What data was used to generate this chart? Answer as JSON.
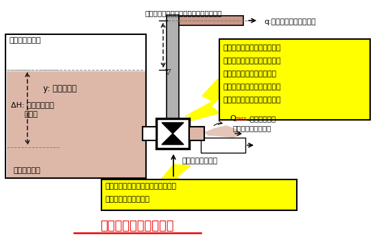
{
  "title": "同軸メカニカルポンプ",
  "canal_label": "用水路通水断面",
  "y_label": "y: ポンプ揚程",
  "dH_label1": "ΔH: ポンプ上下流",
  "dH_label2": "水位差",
  "pump_label": "樋管式分水工",
  "top_label": "高位農地への灌漑や他目的用水の給水所",
  "q_label": "q:ポンプ分水（揚水）量",
  "Qpass1": "Q",
  "Qpass2": "pass",
  "Qpass3": ":ポンプ通過量",
  "Qpass4": "（支線への分水量）",
  "low_label": "低位圃場への灌漑",
  "yellow_box1_lines": [
    "揚水機を通過する水流によっ",
    "て、水車羽根および水車羽根",
    "に付与された揚水羽根を回",
    "転させ揚水するので、水流以",
    "外の動力源を必要としない。"
  ],
  "yellow_box2_lines": [
    "既存の分水工に大規模な施設改修を",
    "伴わずに設置できる。"
  ],
  "water_color": "#ddb8a8",
  "yellow": "#ffff00",
  "red": "#ee0000",
  "gray_pipe": "#b0b0b0",
  "pipe_water": "#cc9988"
}
